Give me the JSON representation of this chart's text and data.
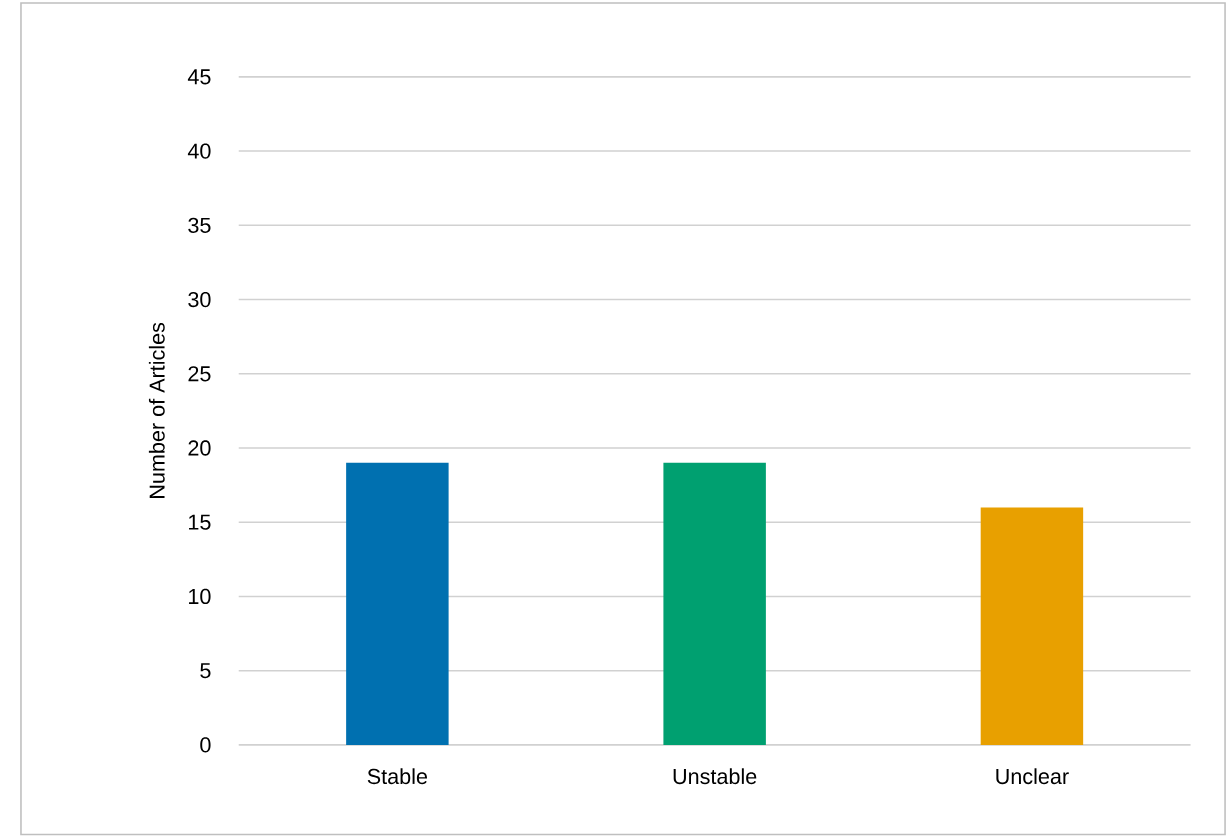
{
  "chart_data": {
    "type": "bar",
    "ylabel": "Number of Articles",
    "categories": [
      "Stable",
      "Unstable",
      "Unclear"
    ],
    "values": [
      19,
      19,
      16
    ],
    "colors": [
      "#0070b0",
      "#00a070",
      "#e8a000"
    ],
    "ylim": [
      0,
      45
    ],
    "yticks": [
      0,
      5,
      10,
      15,
      20,
      25,
      30,
      35,
      40,
      45
    ],
    "grid": "y"
  }
}
